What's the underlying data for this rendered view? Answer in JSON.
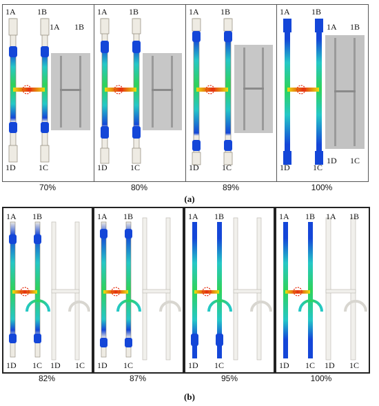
{
  "corner_labels": {
    "a": "1A",
    "b": "1B",
    "c": "1C",
    "d": "1D"
  },
  "row_a": {
    "percents": [
      "70%",
      "80%",
      "89%",
      "100%"
    ],
    "caption": "(a)"
  },
  "row_b": {
    "percents": [
      "82%",
      "87%",
      "95%",
      "100%"
    ],
    "caption": "(b)"
  },
  "colors": {
    "red": "#e53011",
    "yellow": "#e8e20f",
    "green": "#2fd35a",
    "cyan": "#25c7c7",
    "blue": "#1446d8",
    "unfilled": "#eeebe3",
    "outline": "#8d8677",
    "photo_bg": "#c4c4c4",
    "photo_light": "#e6e6e6"
  }
}
